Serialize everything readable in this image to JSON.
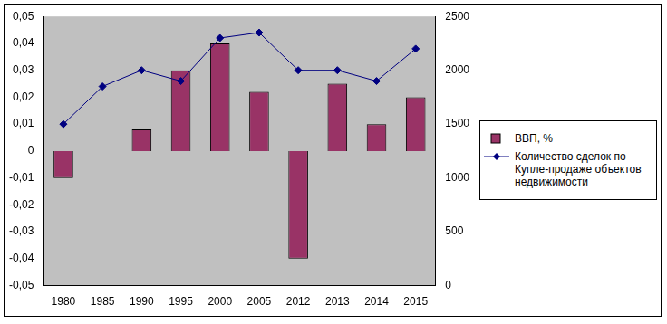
{
  "chart_data": {
    "type": "bar",
    "categories": [
      "1980",
      "1985",
      "1990",
      "1995",
      "2000",
      "2005",
      "2012",
      "2013",
      "2014",
      "2015"
    ],
    "series": [
      {
        "name": "ВВП, %",
        "type": "bar",
        "color": "#993366",
        "values": [
          -0.01,
          0,
          0.008,
          0.03,
          0.04,
          0.022,
          -0.04,
          0.025,
          0.01,
          0.02
        ]
      },
      {
        "name": "Количество  сделок по Купле-продаже объектов недвижимости",
        "type": "line",
        "axis": "y2",
        "color": "#000080",
        "marker": "diamond",
        "values": [
          1500,
          1850,
          2000,
          1900,
          2300,
          2350,
          2000,
          2000,
          1900,
          2200
        ]
      }
    ],
    "ylim": [
      -0.05,
      0.05
    ],
    "yticks": [
      {
        "value": -0.05,
        "label": "-0,05"
      },
      {
        "value": -0.04,
        "label": "-0,04"
      },
      {
        "value": -0.03,
        "label": "-0,03"
      },
      {
        "value": -0.02,
        "label": "-0,02"
      },
      {
        "value": -0.01,
        "label": "-0,01"
      },
      0,
      {
        "value": 0.01,
        "label": "0,01"
      },
      {
        "value": 0.02,
        "label": "0,02"
      },
      {
        "value": 0.03,
        "label": "0,03"
      },
      {
        "value": 0.04,
        "label": "0,04"
      },
      {
        "value": 0.05,
        "label": "0,05"
      }
    ],
    "y2lim": [
      0,
      2500
    ],
    "y2ticks": [
      0,
      500,
      1000,
      1500,
      2000,
      2500
    ],
    "grid": false,
    "legend": "right"
  }
}
